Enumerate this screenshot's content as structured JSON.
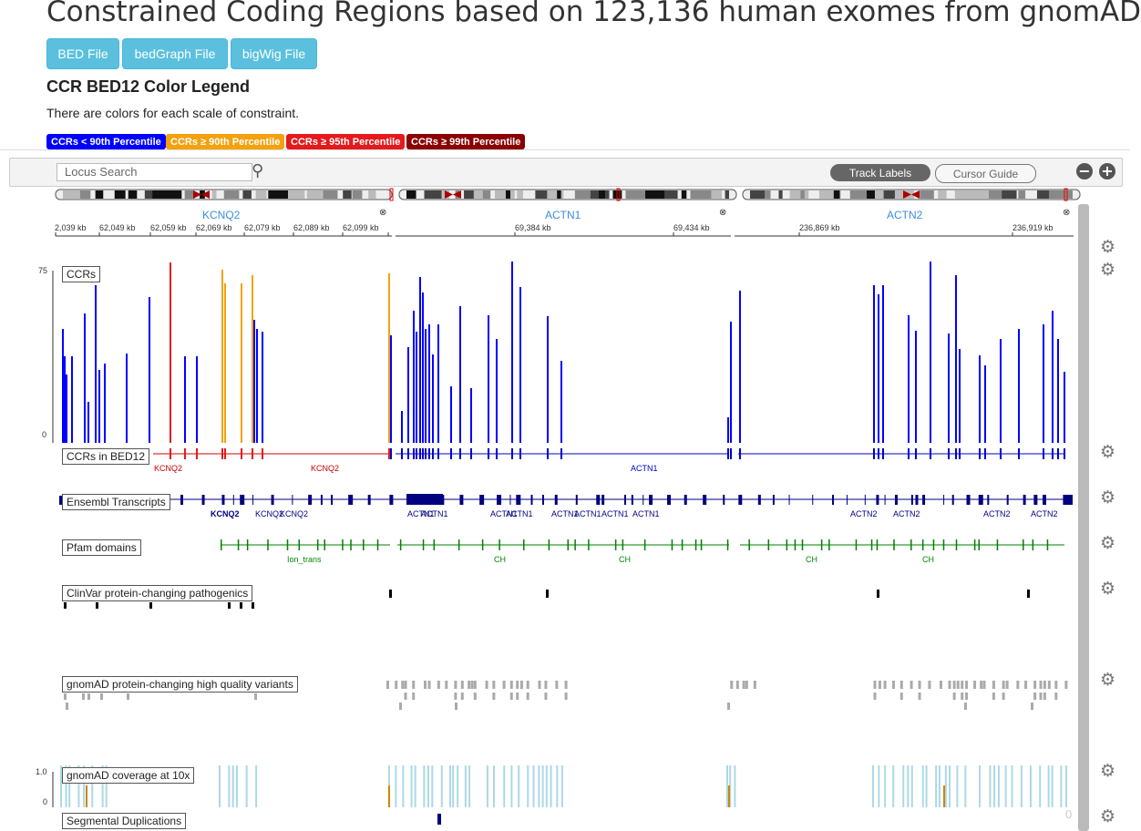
{
  "title": "Constrained Coding Regions based on 123,136 human exomes from gnomAD",
  "downloads": [
    "BED File",
    "bedGraph File",
    "bigWig File"
  ],
  "legend": {
    "heading": "CCR BED12 Color Legend",
    "text": "There are colors for each scale of constraint.",
    "badges": [
      {
        "label": "CCRs < 90th Percentile",
        "color": "#0000ff"
      },
      {
        "label": "CCRs ≥ 90th Percentile",
        "color": "#f4a10e"
      },
      {
        "label": "CCRs ≥ 95th Percentile",
        "color": "#e41a1c"
      },
      {
        "label": "CCRs ≥ 99th Percentile",
        "color": "#8b0000"
      }
    ]
  },
  "navbar": {
    "search_placeholder": "Locus Search",
    "track_labels": "Track Labels",
    "cursor_guide": "Cursor Guide"
  },
  "loci": [
    {
      "gene": "KCNQ2",
      "ticks": [
        "2,039 kb",
        "62,049 kb",
        "62,059 kb",
        "62,069 kb",
        "62,079 kb",
        "62,089 kb",
        "62,099 kb"
      ]
    },
    {
      "gene": "ACTN1",
      "ticks": [
        "69,384 kb",
        "69,434 kb"
      ]
    },
    {
      "gene": "ACTN2",
      "ticks": [
        "236,869 kb",
        "236,919 kb"
      ]
    }
  ],
  "tracks": [
    {
      "name": "CCRs",
      "scale_max": "75",
      "scale_min": "0"
    },
    {
      "name": "CCRs in BED12"
    },
    {
      "name": "Ensembl Transcripts"
    },
    {
      "name": "Pfam domains"
    },
    {
      "name": "ClinVar protein-changing pathogenics"
    },
    {
      "name": "gnomAD protein-changing high quality variants"
    },
    {
      "name": "gnomAD coverage at 10x",
      "scale_max": "1.0",
      "scale_min": "0"
    },
    {
      "name": "Segmental Duplications"
    }
  ],
  "feature_labels": {
    "bed12": [
      "KCNQ2",
      "KCNQ2",
      "ACTN1"
    ],
    "ensembl": [
      "KCNQ2",
      "KCNQ2",
      "KCNQ2",
      "ACTN1",
      "ACTN1",
      "ACTN1",
      "ACTN1",
      "ACTN1",
      "ACTN1",
      "ACTN1",
      "ACTN1",
      "ACTN2",
      "ACTN2",
      "ACTN2",
      "ACTN2"
    ],
    "pfam": [
      "Ion_trans",
      "CH",
      "CH",
      "CH",
      "CH"
    ]
  },
  "misc": {
    "corner_zero": "0"
  },
  "colors": {
    "ccr_low": "#0000ff",
    "ccr_90": "#f4a10e",
    "ccr_95": "#e41a1c",
    "bed12_low": "#0000cc",
    "transcript": "#000080",
    "pfam": "#008000",
    "clinvar": "#000000",
    "gnomad": "#aaaaaa",
    "coverage": "#add8e6",
    "segdup": "#000080",
    "btn": "#5bc0de"
  }
}
